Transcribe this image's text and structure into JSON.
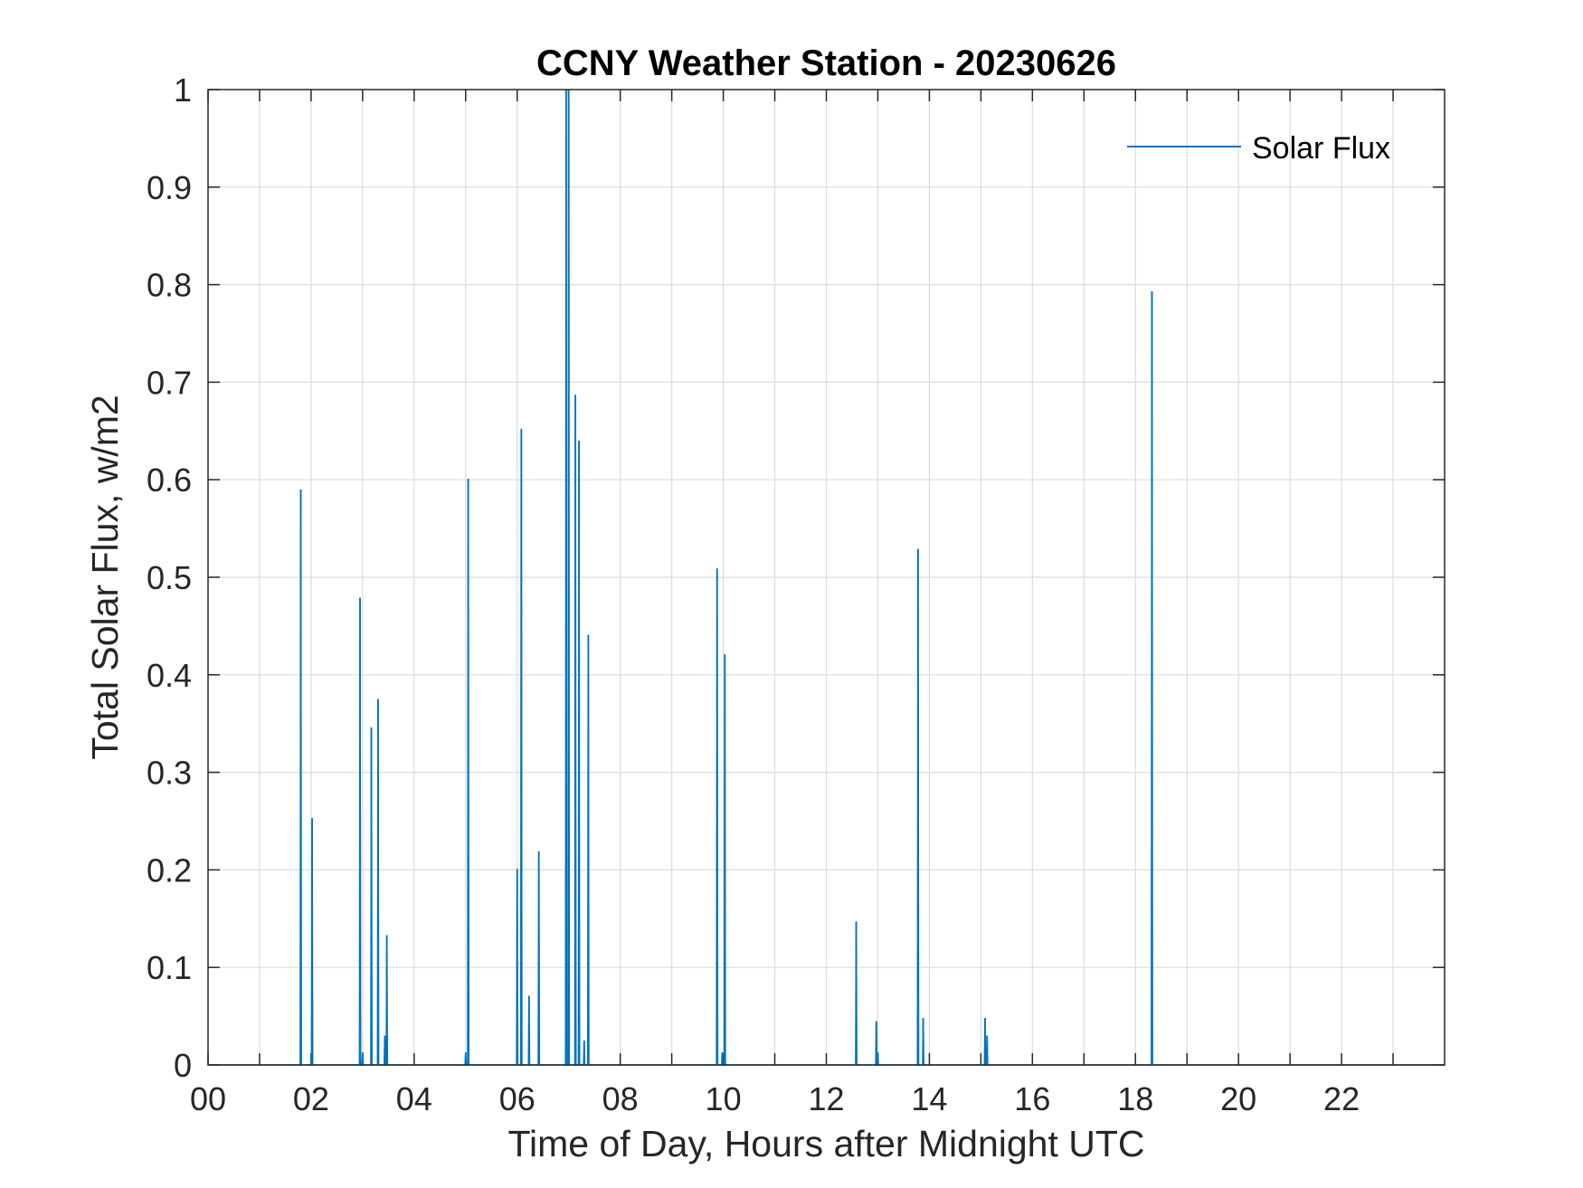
{
  "chart_data": {
    "type": "line",
    "title": "CCNY Weather Station - 20230626",
    "xlabel": "Time of Day, Hours after Midnight UTC",
    "ylabel": "Total Solar Flux, w/m2",
    "xlim": [
      0,
      24
    ],
    "ylim": [
      0,
      1
    ],
    "x_ticks": [
      0,
      2,
      4,
      6,
      8,
      10,
      12,
      14,
      16,
      18,
      20,
      22
    ],
    "x_tick_labels": [
      "00",
      "02",
      "04",
      "06",
      "08",
      "10",
      "12",
      "14",
      "16",
      "18",
      "20",
      "22"
    ],
    "x_minor_ticks": [
      1,
      3,
      5,
      7,
      9,
      11,
      13,
      15,
      17,
      19,
      21,
      23
    ],
    "y_ticks": [
      0,
      0.1,
      0.2,
      0.3,
      0.4,
      0.5,
      0.6,
      0.7,
      0.8,
      0.9,
      1
    ],
    "y_tick_labels": [
      "0",
      "0.1",
      "0.2",
      "0.3",
      "0.4",
      "0.5",
      "0.6",
      "0.7",
      "0.8",
      "0.9",
      "1"
    ],
    "grid": true,
    "legend_position": "top-right",
    "series": [
      {
        "name": "Solar Flux",
        "color": "#0072BD",
        "spikes": [
          {
            "x": 1.8,
            "y": 0.59
          },
          {
            "x": 2.02,
            "y": 0.253
          },
          {
            "x": 2.95,
            "y": 0.479
          },
          {
            "x": 3.0,
            "y": 0.013
          },
          {
            "x": 3.17,
            "y": 0.346
          },
          {
            "x": 3.3,
            "y": 0.375
          },
          {
            "x": 3.43,
            "y": 0.03
          },
          {
            "x": 3.47,
            "y": 0.133
          },
          {
            "x": 5.0,
            "y": 0.013
          },
          {
            "x": 5.05,
            "y": 0.601
          },
          {
            "x": 6.0,
            "y": 0.201
          },
          {
            "x": 6.08,
            "y": 0.652
          },
          {
            "x": 6.23,
            "y": 0.071
          },
          {
            "x": 6.42,
            "y": 0.219
          },
          {
            "x": 6.95,
            "y": 1.0
          },
          {
            "x": 7.0,
            "y": 1.0
          },
          {
            "x": 7.13,
            "y": 0.687
          },
          {
            "x": 7.2,
            "y": 0.64
          },
          {
            "x": 7.3,
            "y": 0.025
          },
          {
            "x": 7.38,
            "y": 0.441
          },
          {
            "x": 9.88,
            "y": 0.509
          },
          {
            "x": 9.98,
            "y": 0.013
          },
          {
            "x": 10.03,
            "y": 0.421
          },
          {
            "x": 12.58,
            "y": 0.147
          },
          {
            "x": 12.97,
            "y": 0.045
          },
          {
            "x": 13.0,
            "y": 0.013
          },
          {
            "x": 13.78,
            "y": 0.529
          },
          {
            "x": 13.88,
            "y": 0.048
          },
          {
            "x": 15.08,
            "y": 0.048
          },
          {
            "x": 15.12,
            "y": 0.03
          },
          {
            "x": 18.32,
            "y": 0.793
          }
        ]
      }
    ]
  }
}
